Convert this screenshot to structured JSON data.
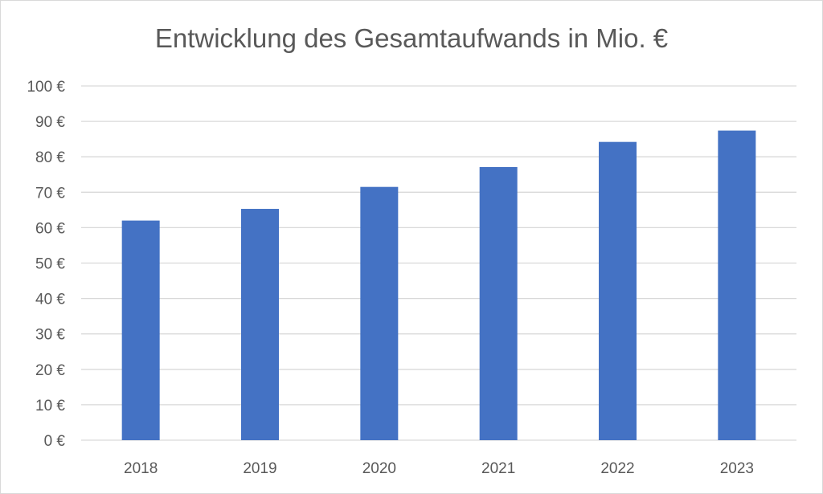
{
  "chart_data": {
    "type": "bar",
    "title": "Entwicklung des Gesamtaufwands in Mio. €",
    "categories": [
      "2018",
      "2019",
      "2020",
      "2021",
      "2022",
      "2023"
    ],
    "values": [
      62,
      65.3,
      71.5,
      77.1,
      84.2,
      87.4
    ],
    "ylim": [
      0,
      100
    ],
    "yticks": [
      "0 €",
      "10 €",
      "20 €",
      "30 €",
      "40 €",
      "50 €",
      "60 €",
      "70 €",
      "80 €",
      "90 €",
      "100 €"
    ],
    "ytick_values": [
      0,
      10,
      20,
      30,
      40,
      50,
      60,
      70,
      80,
      90,
      100
    ],
    "grid": true,
    "bar_color": "#4472c4",
    "grid_color": "#d9d9d9"
  }
}
